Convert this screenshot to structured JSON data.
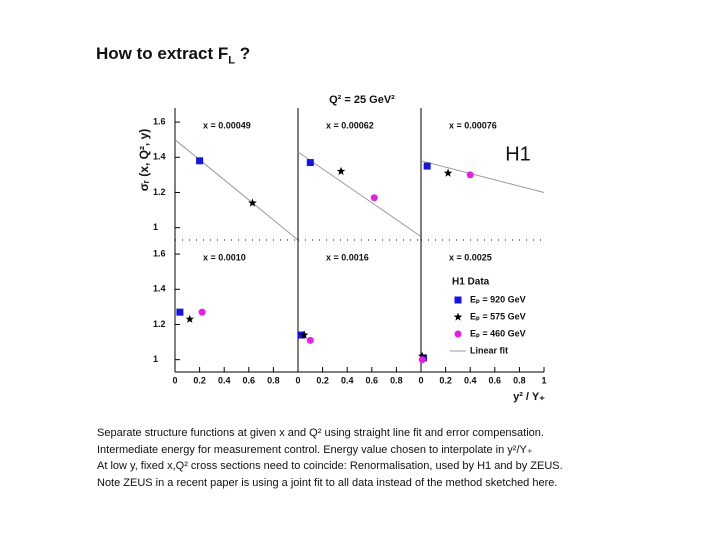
{
  "title": {
    "text": "How to extract F",
    "sub": "L",
    "after": " ?"
  },
  "caption": [
    "Separate structure functions at given x and Q² using straight line fit and error compensation.",
    "Intermediate energy for measurement control. Energy value chosen to interpolate in y²/Y₊",
    "At low y, fixed x,Q² cross sections need to coincide: Renormalisation, used by H1 and by ZEUS.",
    "Note ZEUS in a recent paper is using a joint fit to all data instead of the method sketched here."
  ],
  "figure": {
    "header": "Q² = 25 GeV²",
    "label": "H1",
    "y_label": "σᵣ (x, Q², y)",
    "x_label": "y² / Y₊",
    "legend": {
      "title": "H1 Data",
      "entries": [
        {
          "label": "Eₚ = 920 GeV",
          "color": "#1414e6",
          "marker": "square"
        },
        {
          "label": "Eₚ = 575 GeV",
          "color": "#000000",
          "marker": "star"
        },
        {
          "label": "Eₚ = 460 GeV",
          "color": "#e61ee6",
          "marker": "circle"
        },
        {
          "label": "Linear fit",
          "color": "#999999",
          "marker": "line"
        }
      ]
    }
  },
  "chart_data": [
    {
      "type": "scatter",
      "title": "x =  0.00049",
      "xlim": [
        0,
        1
      ],
      "ylim": [
        0.93,
        1.68
      ],
      "yticks": [
        1,
        1.2,
        1.4,
        1.6
      ],
      "series": [
        {
          "marker": "square",
          "color": "#1414e6",
          "x": [
            0.2
          ],
          "values": [
            1.38
          ]
        },
        {
          "marker": "star",
          "color": "#000000",
          "x": [
            0.63
          ],
          "values": [
            1.14
          ]
        }
      ],
      "fit": {
        "color": "#999999",
        "x": [
          0,
          1
        ],
        "values": [
          1.5,
          0.93
        ]
      }
    },
    {
      "type": "scatter",
      "title": "x =  0.00062",
      "xlim": [
        0,
        1
      ],
      "ylim": [
        0.93,
        1.68
      ],
      "series": [
        {
          "marker": "square",
          "color": "#1414e6",
          "x": [
            0.1
          ],
          "values": [
            1.37
          ]
        },
        {
          "marker": "star",
          "color": "#000000",
          "x": [
            0.35
          ],
          "values": [
            1.32
          ]
        },
        {
          "marker": "circle",
          "color": "#e61ee6",
          "x": [
            0.62
          ],
          "values": [
            1.17
          ]
        }
      ],
      "fit": {
        "color": "#999999",
        "x": [
          0,
          1
        ],
        "values": [
          1.43,
          0.95
        ]
      }
    },
    {
      "type": "scatter",
      "title": "x =  0.00076",
      "xlim": [
        0,
        1
      ],
      "ylim": [
        0.93,
        1.68
      ],
      "series": [
        {
          "marker": "square",
          "color": "#1414e6",
          "x": [
            0.05
          ],
          "values": [
            1.35
          ]
        },
        {
          "marker": "star",
          "color": "#000000",
          "x": [
            0.22
          ],
          "values": [
            1.31
          ]
        },
        {
          "marker": "circle",
          "color": "#e61ee6",
          "x": [
            0.4
          ],
          "values": [
            1.3
          ]
        }
      ],
      "fit": {
        "color": "#999999",
        "x": [
          0,
          1
        ],
        "values": [
          1.38,
          1.2
        ]
      }
    },
    {
      "type": "scatter",
      "title": "x =  0.0010",
      "xlim": [
        0,
        1
      ],
      "ylim": [
        0.93,
        1.68
      ],
      "yticks": [
        1,
        1.2,
        1.4,
        1.6
      ],
      "xticks": [
        0,
        0.2,
        0.4,
        0.6,
        0.8
      ],
      "series": [
        {
          "marker": "square",
          "color": "#1414e6",
          "x": [
            0.04
          ],
          "values": [
            1.27
          ]
        },
        {
          "marker": "star",
          "color": "#000000",
          "x": [
            0.12
          ],
          "values": [
            1.23
          ]
        },
        {
          "marker": "circle",
          "color": "#e61ee6",
          "x": [
            0.22
          ],
          "values": [
            1.27
          ]
        }
      ]
    },
    {
      "type": "scatter",
      "title": "x =  0.0016",
      "xlim": [
        0,
        1
      ],
      "ylim": [
        0.93,
        1.68
      ],
      "xticks": [
        0,
        0.2,
        0.4,
        0.6,
        0.8
      ],
      "series": [
        {
          "marker": "square",
          "color": "#1414e6",
          "x": [
            0.03
          ],
          "values": [
            1.14
          ]
        },
        {
          "marker": "star",
          "color": "#000000",
          "x": [
            0.05
          ],
          "values": [
            1.14
          ]
        },
        {
          "marker": "circle",
          "color": "#e61ee6",
          "x": [
            0.1
          ],
          "values": [
            1.11
          ]
        }
      ]
    },
    {
      "type": "scatter",
      "title": "x =  0.0025",
      "xlim": [
        0,
        1
      ],
      "ylim": [
        0.93,
        1.68
      ],
      "xticks": [
        0,
        0.2,
        0.4,
        0.6,
        0.8,
        1
      ],
      "series": [
        {
          "marker": "square",
          "color": "#1414e6",
          "x": [
            0.02
          ],
          "values": [
            1.01
          ]
        },
        {
          "marker": "star",
          "color": "#000000",
          "x": [
            0.01
          ],
          "values": [
            1.02
          ]
        },
        {
          "marker": "circle",
          "color": "#e61ee6",
          "x": [
            0.01
          ],
          "values": [
            1.0
          ]
        }
      ]
    }
  ]
}
